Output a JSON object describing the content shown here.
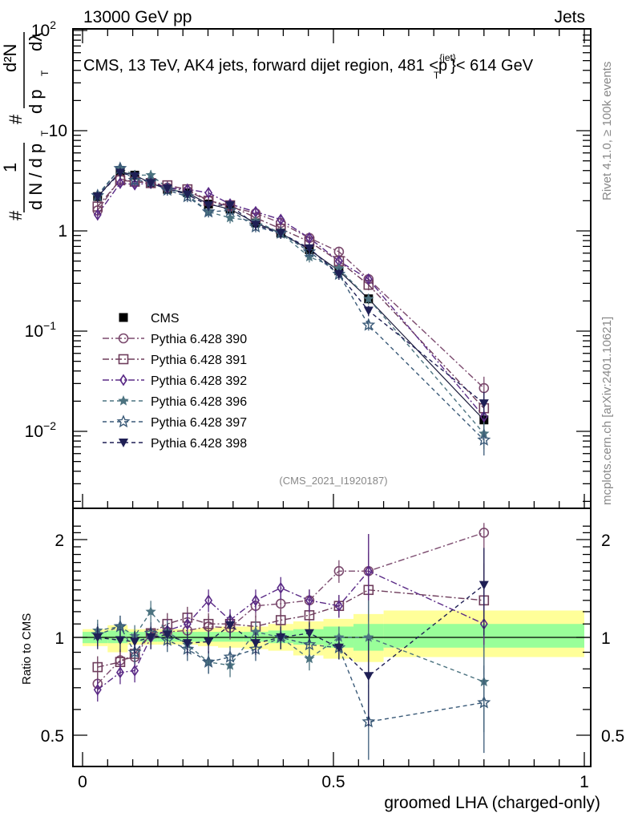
{
  "header": {
    "left": "13000 GeV pp",
    "right": "Jets"
  },
  "side_labels": {
    "rivet": "Rivet 4.1.0, ≥ 100k events",
    "mcplots": "mcplots.cern.ch [arXiv:2401.10621]"
  },
  "chart_data": [
    {
      "type": "scatter",
      "panel": "main",
      "title": "CMS, 13 TeV, AK4 jets, forward dijet region, 481 <p_T^{jet}< 614 GeV",
      "title_parts": {
        "prefix": "CMS, 13 TeV, AK4 jets, forward dijet region, 481 <p",
        "sub": "T",
        "sup": "{jet}",
        "suffix": "}< 614 GeV"
      },
      "analysis_id": "(CMS_2021_I1920187)",
      "ylabel_parts": {
        "numer_a": "1",
        "denom_a": "d N / d p",
        "denom_a_sub": "T",
        "hash": "#",
        "numer_b": "d²N",
        "denom_b": "d p",
        "denom_b_sub": "T",
        "dlambda": "dλ"
      },
      "yscale": "log",
      "ylim": [
        0.0018,
        100
      ],
      "yticks": [
        {
          "value": 100,
          "label": "10",
          "exp": "2"
        },
        {
          "value": 10,
          "label": "10",
          "exp": ""
        },
        {
          "value": 1,
          "label": "1",
          "exp": ""
        },
        {
          "value": 0.1,
          "label": "10",
          "exp": "−1"
        },
        {
          "value": 0.01,
          "label": "10",
          "exp": "−2"
        }
      ],
      "xlim": [
        -0.02,
        1.013
      ],
      "legend_position": "left-middle",
      "x": [
        0.03,
        0.075,
        0.104,
        0.136,
        0.169,
        0.209,
        0.251,
        0.294,
        0.345,
        0.395,
        0.452,
        0.511,
        0.57,
        0.8
      ],
      "series": [
        {
          "name": "CMS",
          "marker": "filled-square",
          "color": "#000000",
          "line": "none",
          "values": [
            2.2,
            3.9,
            3.6,
            3.0,
            2.6,
            2.4,
            1.85,
            1.65,
            1.2,
            0.95,
            0.65,
            0.4,
            0.21,
            0.013
          ]
        },
        {
          "name": "Pythia 6.428 390",
          "marker": "open-circle",
          "color": "#7b4a6e",
          "line": "dashdot",
          "values": [
            1.6,
            3.3,
            3.1,
            3.1,
            2.7,
            2.5,
            2.0,
            1.75,
            1.5,
            1.2,
            0.85,
            0.62,
            0.33,
            0.027
          ]
        },
        {
          "name": "Pythia 6.428 391",
          "marker": "open-square",
          "color": "#6e3d5c",
          "line": "dashdot",
          "values": [
            1.75,
            3.2,
            3.1,
            3.0,
            2.85,
            2.6,
            2.0,
            1.8,
            1.35,
            1.05,
            0.78,
            0.5,
            0.29,
            0.017
          ]
        },
        {
          "name": "Pythia 6.428 392",
          "marker": "open-diamond",
          "color": "#5a2a86",
          "line": "dashdot",
          "values": [
            1.45,
            3.0,
            2.9,
            3.0,
            2.7,
            2.6,
            2.4,
            1.85,
            1.55,
            1.3,
            0.85,
            0.5,
            0.33,
            0.014
          ]
        },
        {
          "name": "Pythia 6.428 396",
          "marker": "filled-star",
          "color": "#4c7380",
          "line": "dashed",
          "values": [
            2.3,
            4.2,
            3.6,
            3.6,
            2.7,
            2.3,
            1.55,
            1.35,
            1.25,
            0.95,
            0.55,
            0.42,
            0.21,
            0.0095
          ]
        },
        {
          "name": "Pythia 6.428 397",
          "marker": "open-star",
          "color": "#3a5a78",
          "line": "dashed",
          "values": [
            2.25,
            4.2,
            3.2,
            3.1,
            2.55,
            2.2,
            1.55,
            1.6,
            1.1,
            0.95,
            0.62,
            0.37,
            0.115,
            0.0082
          ]
        },
        {
          "name": "Pythia 6.428 398",
          "marker": "filled-triangle-down",
          "color": "#1f1f55",
          "line": "dashed",
          "values": [
            2.2,
            3.8,
            3.5,
            3.0,
            2.65,
            2.3,
            1.8,
            1.8,
            1.15,
            0.95,
            0.67,
            0.37,
            0.16,
            0.019
          ]
        }
      ]
    },
    {
      "type": "scatter",
      "panel": "ratio",
      "ylabel": "Ratio to CMS",
      "xlabel": "groomed LHA (charged-only)",
      "yscale": "log",
      "ylim": [
        0.4,
        2.3
      ],
      "yticks": [
        {
          "value": 2,
          "label": "2"
        },
        {
          "value": 1,
          "label": "1"
        },
        {
          "value": 0.5,
          "label": "0.5"
        }
      ],
      "xticks": [
        {
          "value": 0,
          "label": "0"
        },
        {
          "value": 0.5,
          "label": "0.5"
        },
        {
          "value": 1,
          "label": "1"
        }
      ],
      "xlim": [
        -0.02,
        1.013
      ],
      "reference_line": 1,
      "bands": {
        "edges": [
          0.0,
          0.05,
          0.09,
          0.12,
          0.15,
          0.19,
          0.23,
          0.27,
          0.32,
          0.37,
          0.42,
          0.48,
          0.54,
          0.6,
          1.0
        ],
        "inner": [
          [
            0.96,
            1.04
          ],
          [
            0.96,
            1.05
          ],
          [
            0.97,
            1.04
          ],
          [
            0.97,
            1.04
          ],
          [
            0.97,
            1.04
          ],
          [
            0.97,
            1.04
          ],
          [
            0.97,
            1.04
          ],
          [
            0.97,
            1.04
          ],
          [
            0.97,
            1.04
          ],
          [
            0.96,
            1.05
          ],
          [
            0.95,
            1.06
          ],
          [
            0.93,
            1.08
          ],
          [
            0.91,
            1.1
          ],
          [
            0.93,
            1.1
          ]
        ],
        "outer": [
          [
            0.94,
            1.06
          ],
          [
            0.9,
            1.09
          ],
          [
            0.95,
            1.06
          ],
          [
            0.95,
            1.06
          ],
          [
            0.95,
            1.06
          ],
          [
            0.95,
            1.06
          ],
          [
            0.94,
            1.07
          ],
          [
            0.93,
            1.08
          ],
          [
            0.92,
            1.08
          ],
          [
            0.91,
            1.1
          ],
          [
            0.88,
            1.12
          ],
          [
            0.86,
            1.14
          ],
          [
            0.84,
            1.18
          ],
          [
            0.87,
            1.21
          ]
        ],
        "inner_color": "#99ff99",
        "outer_color": "#ffff99"
      },
      "x": [
        0.03,
        0.075,
        0.104,
        0.136,
        0.169,
        0.209,
        0.251,
        0.294,
        0.345,
        0.395,
        0.452,
        0.511,
        0.57,
        0.8
      ],
      "series": [
        {
          "name": "Pythia 6.428 390",
          "values": [
            0.72,
            0.85,
            0.87,
            1.03,
            1.04,
            1.05,
            1.08,
            1.07,
            1.25,
            1.27,
            1.3,
            1.6,
            1.6,
            2.1
          ]
        },
        {
          "name": "Pythia 6.428 391",
          "values": [
            0.81,
            0.84,
            0.89,
            1.03,
            1.1,
            1.15,
            1.1,
            1.1,
            1.08,
            1.13,
            1.17,
            1.25,
            1.4,
            1.3
          ]
        },
        {
          "name": "Pythia 6.428 392",
          "values": [
            0.69,
            0.78,
            0.79,
            1.0,
            1.05,
            1.1,
            1.3,
            1.13,
            1.3,
            1.42,
            1.3,
            1.25,
            1.6,
            1.1
          ]
        },
        {
          "name": "Pythia 6.428 396",
          "values": [
            1.05,
            1.08,
            1.01,
            1.2,
            1.04,
            0.95,
            0.84,
            0.82,
            1.04,
            1.0,
            0.86,
            1.0,
            1.0,
            0.73
          ]
        },
        {
          "name": "Pythia 6.428 397",
          "values": [
            1.02,
            1.08,
            0.9,
            1.03,
            0.98,
            0.92,
            0.84,
            0.87,
            0.92,
            1.0,
            0.95,
            0.93,
            0.55,
            0.63
          ]
        },
        {
          "name": "Pythia 6.428 398",
          "values": [
            1.0,
            0.98,
            0.97,
            1.0,
            1.02,
            0.96,
            0.97,
            1.09,
            0.96,
            1.0,
            1.03,
            0.93,
            0.76,
            1.45
          ]
        }
      ]
    }
  ]
}
